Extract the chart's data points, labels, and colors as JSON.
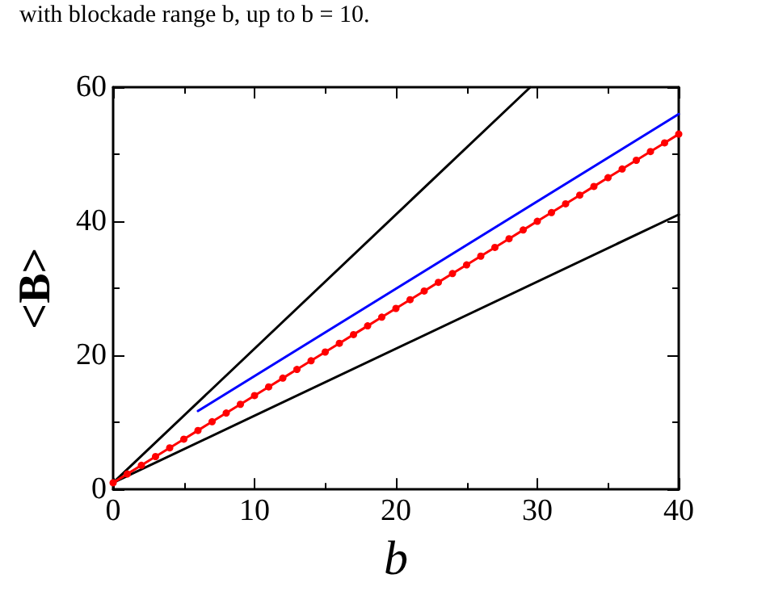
{
  "chart_data": {
    "type": "line",
    "xlabel": "b",
    "ylabel": "<B>",
    "annotations": [
      "with blockade range b, up to b = 10."
    ],
    "xlim": [
      0,
      40
    ],
    "xticks": [
      0,
      10,
      20,
      30,
      40
    ],
    "ylim": [
      0,
      60
    ],
    "yticks": [
      0,
      20,
      40,
      60
    ],
    "grid": false,
    "line_style": "solid",
    "series": [
      {
        "color": "#000000",
        "x": [
          0,
          29.5
        ],
        "values": [
          1,
          60
        ],
        "marker": "none"
      },
      {
        "color": "#000000",
        "x": [
          0,
          40
        ],
        "values": [
          1,
          41
        ],
        "marker": "none"
      },
      {
        "color": "#0000ff",
        "x": [
          6,
          40
        ],
        "values": [
          11.7,
          56
        ],
        "marker": "none"
      },
      {
        "color": "#ff0000",
        "marker": "circle",
        "x": [
          0,
          1,
          2,
          3,
          4,
          5,
          6,
          7,
          8,
          9,
          10,
          11,
          12,
          13,
          14,
          15,
          16,
          17,
          18,
          19,
          20,
          21,
          22,
          23,
          24,
          25,
          26,
          27,
          28,
          29,
          30,
          31,
          32,
          33,
          34,
          35,
          36,
          37,
          38,
          39,
          40
        ],
        "values": [
          1.0,
          2.3,
          3.6,
          4.9,
          6.2,
          7.5,
          8.8,
          10.1,
          11.4,
          12.7,
          14.0,
          15.3,
          16.6,
          17.9,
          19.2,
          20.5,
          21.8,
          23.1,
          24.4,
          25.7,
          27.0,
          28.3,
          29.6,
          30.9,
          32.2,
          33.5,
          34.8,
          36.1,
          37.4,
          38.7,
          40.0,
          41.3,
          42.6,
          43.9,
          45.2,
          46.5,
          47.8,
          49.1,
          50.4,
          51.7,
          53.0
        ]
      }
    ]
  }
}
